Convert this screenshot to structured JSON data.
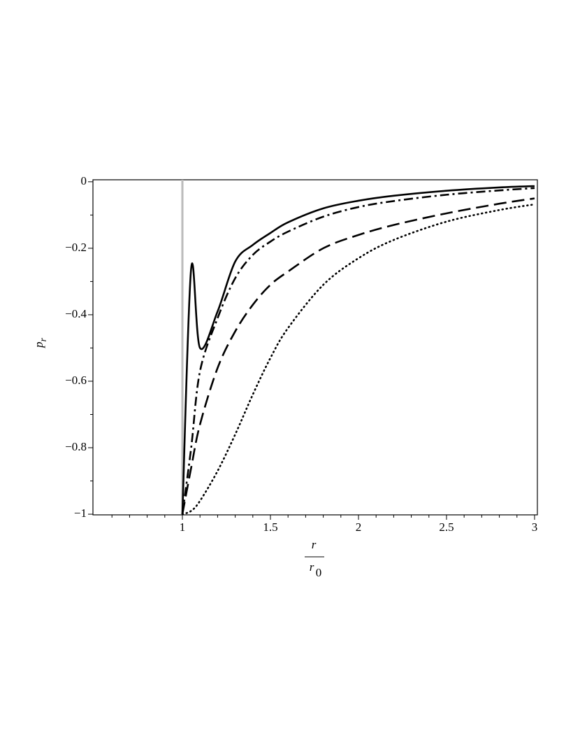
{
  "chart_data": {
    "type": "line",
    "xlabel": {
      "numerator": "r",
      "denominator": "r",
      "denominator_subscript": "0"
    },
    "ylabel": {
      "text": "p",
      "subscript": "r"
    },
    "x": [
      1,
      1.05,
      1.1,
      1.2,
      1.3,
      1.4,
      1.5,
      1.6,
      1.8,
      2,
      2.2,
      2.5,
      2.8,
      3
    ],
    "series": [
      {
        "color": "#000000",
        "dash": "solid",
        "values": [
          -1,
          -0.26,
          -0.5,
          -0.39,
          -0.24,
          -0.19,
          -0.154,
          -0.122,
          -0.08,
          -0.057,
          -0.042,
          -0.027,
          -0.017,
          -0.013
        ]
      },
      {
        "color": "#000000",
        "dash": "dashdot",
        "values": [
          -1,
          -0.8,
          -0.57,
          -0.41,
          -0.29,
          -0.22,
          -0.18,
          -0.15,
          -0.105,
          -0.076,
          -0.058,
          -0.039,
          -0.026,
          -0.019
        ]
      },
      {
        "color": "#000000",
        "dash": "dashed",
        "values": [
          -1,
          -0.86,
          -0.73,
          -0.56,
          -0.45,
          -0.37,
          -0.31,
          -0.27,
          -0.2,
          -0.16,
          -0.13,
          -0.095,
          -0.066,
          -0.05
        ]
      },
      {
        "color": "#000000",
        "dash": "dotted",
        "values": [
          -1,
          -0.99,
          -0.96,
          -0.87,
          -0.76,
          -0.64,
          -0.53,
          -0.44,
          -0.31,
          -0.23,
          -0.175,
          -0.12,
          -0.085,
          -0.068
        ]
      }
    ],
    "vline": {
      "x": 1,
      "color": "#bbbbbb"
    },
    "xlim": [
      0.492,
      3.016
    ],
    "ylim": [
      -1.002,
      0.006
    ],
    "xticks": [
      1,
      1.5,
      2,
      2.5,
      3
    ],
    "yticks": [
      0,
      {
        "value": -0.2,
        "label": "−0.2"
      },
      {
        "value": -0.4,
        "label": "−0.4"
      },
      {
        "value": -0.6,
        "label": "−0.6"
      },
      {
        "value": -0.8,
        "label": "−0.8"
      },
      {
        "value": -1,
        "label": "−1"
      }
    ],
    "xminorticks": [
      0.6,
      0.7,
      0.8,
      0.9,
      1.1,
      1.2,
      1.3,
      1.4,
      1.6,
      1.7,
      1.8,
      1.9,
      2.1,
      2.2,
      2.3,
      2.4,
      2.6,
      2.7,
      2.8,
      2.9
    ],
    "yminorticks": [
      -0.1,
      -0.3,
      -0.5,
      -0.7,
      -0.9
    ]
  }
}
